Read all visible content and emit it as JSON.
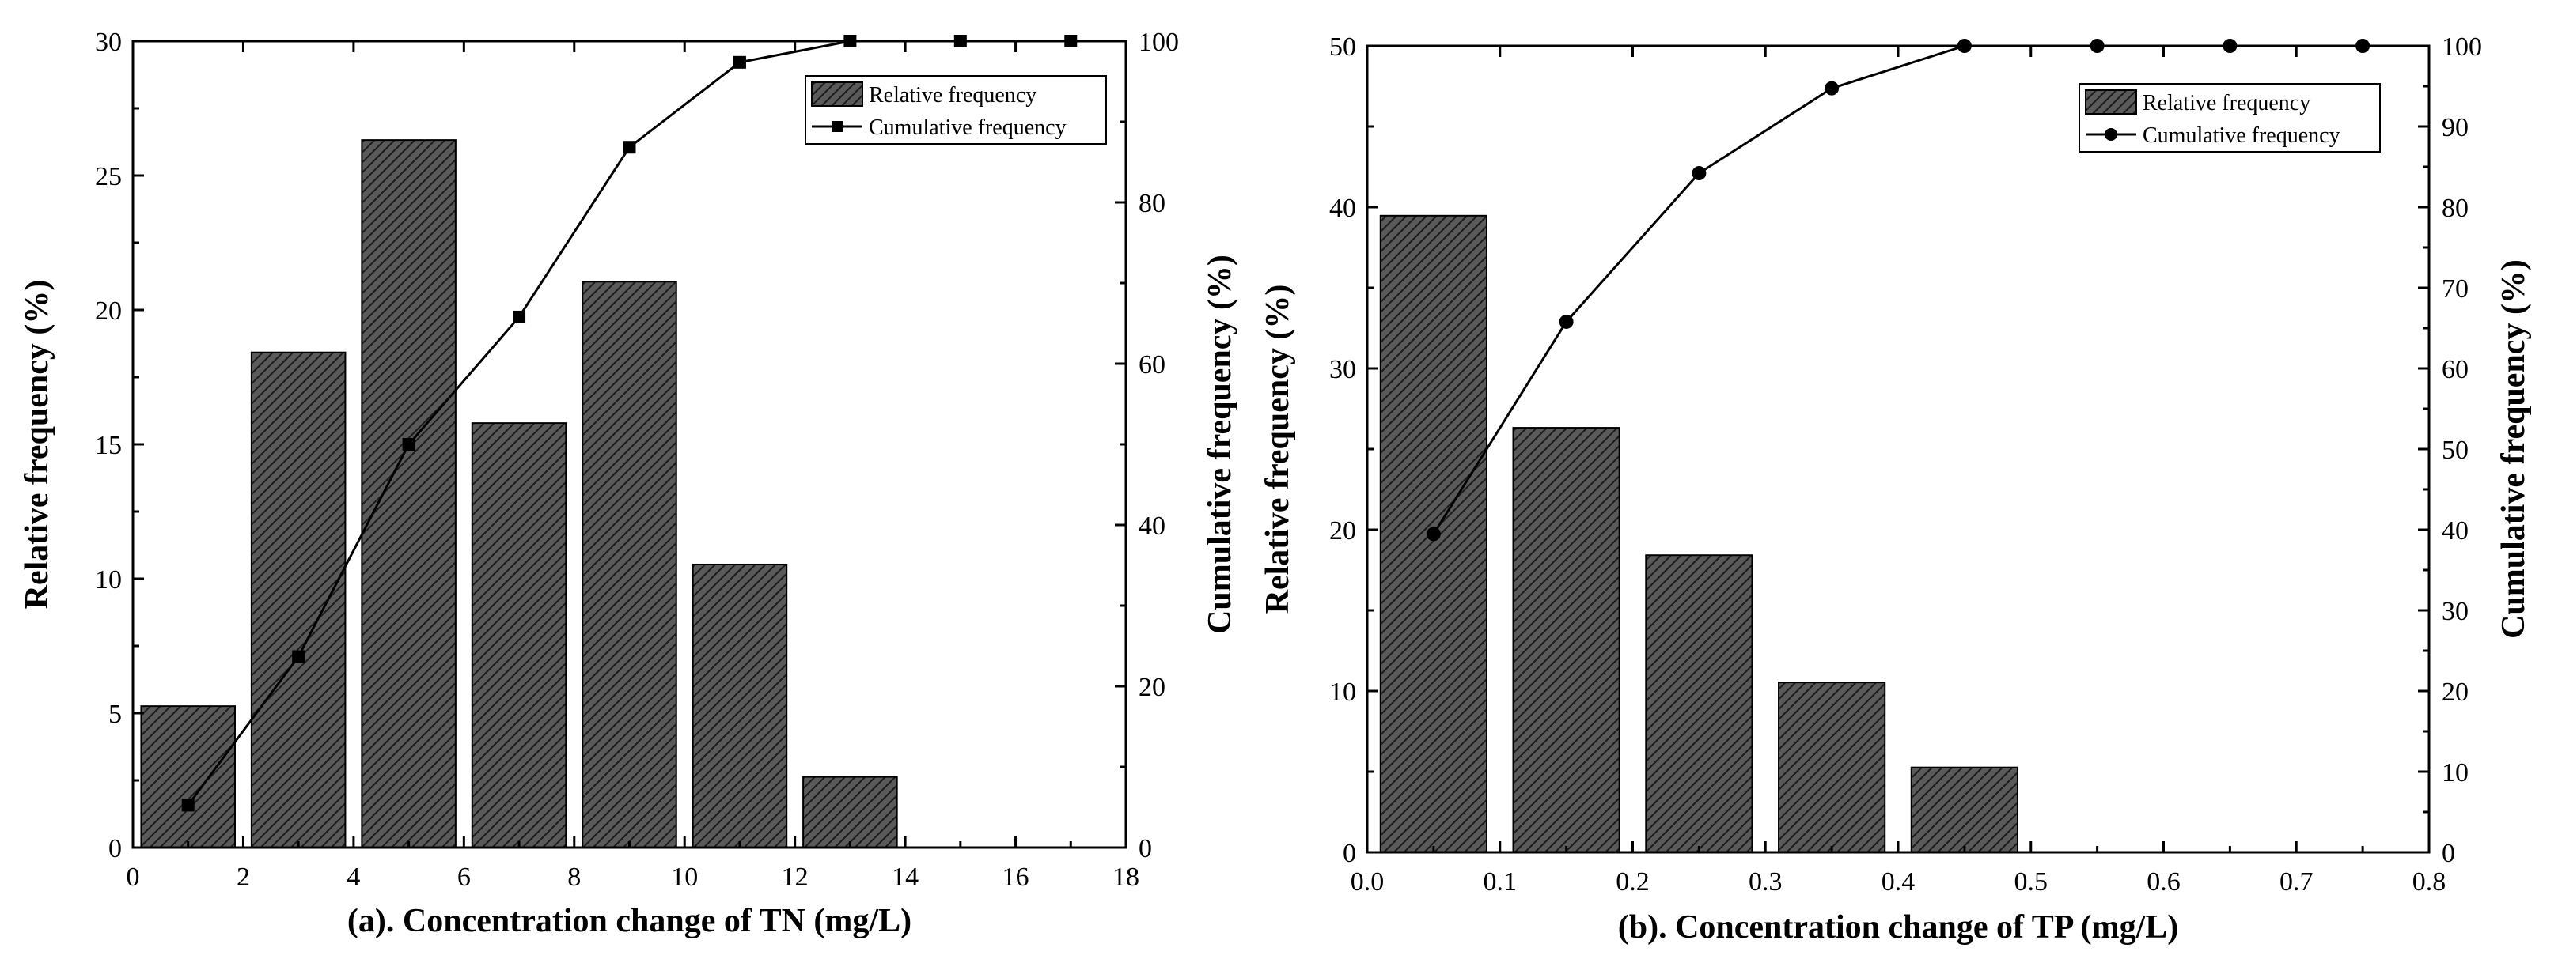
{
  "colors": {
    "bar_fill": "#5a5a5a",
    "hatch": "#1a1a1a",
    "line": "#000000",
    "background": "#ffffff"
  },
  "chart_data": [
    {
      "type": "bar",
      "panel": "a",
      "x": [
        1,
        3,
        5,
        7,
        9,
        11,
        13,
        15,
        17
      ],
      "bar_width": 1.7,
      "series": [
        {
          "name": "Relative frequency",
          "type": "bar",
          "axis": "left",
          "values": [
            5.26,
            18.42,
            26.32,
            15.79,
            21.05,
            10.53,
            2.63,
            0,
            0
          ]
        },
        {
          "name": "Cumulative frequency",
          "type": "line",
          "axis": "right",
          "marker": "square",
          "values": [
            5.26,
            23.68,
            50.0,
            65.79,
            86.84,
            97.37,
            100,
            100,
            100
          ]
        }
      ],
      "xlabel": "(a). Concentration change of  TN (mg/L)",
      "ylabel": "Relative frequency (%)",
      "y2label": "Cumulative frequency (%)",
      "xlim": [
        0,
        18
      ],
      "ylim": [
        0,
        30
      ],
      "y2lim": [
        0,
        100
      ],
      "xticks": [
        0,
        2,
        4,
        6,
        8,
        10,
        12,
        14,
        16,
        18
      ],
      "yticks": [
        0,
        5,
        10,
        15,
        20,
        25,
        30
      ],
      "y2ticks": [
        0,
        20,
        40,
        60,
        80,
        100
      ],
      "xtick_labels": [
        "0",
        "2",
        "4",
        "6",
        "8",
        "10",
        "12",
        "14",
        "16",
        "18"
      ],
      "ytick_labels": [
        "0",
        "5",
        "10",
        "15",
        "20",
        "25",
        "30"
      ],
      "y2tick_labels": [
        "0",
        "20",
        "40",
        "60",
        "80",
        "100"
      ],
      "legend": {
        "position": "top-right",
        "items": [
          "Relative frequency",
          "Cumulative frequency"
        ]
      }
    },
    {
      "type": "bar",
      "panel": "b",
      "x": [
        0.05,
        0.15,
        0.25,
        0.35,
        0.45,
        0.55,
        0.65,
        0.75
      ],
      "bar_width": 0.08,
      "series": [
        {
          "name": "Relative frequency",
          "type": "bar",
          "axis": "left",
          "values": [
            39.47,
            26.32,
            18.42,
            10.53,
            5.26,
            0,
            0,
            0
          ]
        },
        {
          "name": "Cumulative frequency",
          "type": "line",
          "axis": "right",
          "marker": "circle",
          "values": [
            39.47,
            65.79,
            84.21,
            94.74,
            100,
            100,
            100,
            100
          ]
        }
      ],
      "xlabel": "(b). Concentration change of  TP (mg/L)",
      "ylabel": "Relative frequency (%)",
      "y2label": "Cumulative frequency (%)",
      "xlim": [
        0,
        0.8
      ],
      "ylim": [
        0,
        50
      ],
      "y2lim": [
        0,
        100
      ],
      "xticks": [
        0,
        0.1,
        0.2,
        0.3,
        0.4,
        0.5,
        0.6,
        0.7,
        0.8
      ],
      "yticks": [
        0,
        10,
        20,
        30,
        40,
        50
      ],
      "y2ticks": [
        0,
        10,
        20,
        30,
        40,
        50,
        60,
        70,
        80,
        90,
        100
      ],
      "xtick_labels": [
        "0.0",
        "0.1",
        "0.2",
        "0.3",
        "0.4",
        "0.5",
        "0.6",
        "0.7",
        "0.8"
      ],
      "ytick_labels": [
        "0",
        "10",
        "20",
        "30",
        "40",
        "50"
      ],
      "y2tick_labels": [
        "0",
        "10",
        "20",
        "30",
        "40",
        "50",
        "60",
        "70",
        "80",
        "90",
        "100"
      ],
      "legend": {
        "position": "top-right",
        "items": [
          "Relative frequency",
          "Cumulative frequency"
        ]
      }
    }
  ]
}
